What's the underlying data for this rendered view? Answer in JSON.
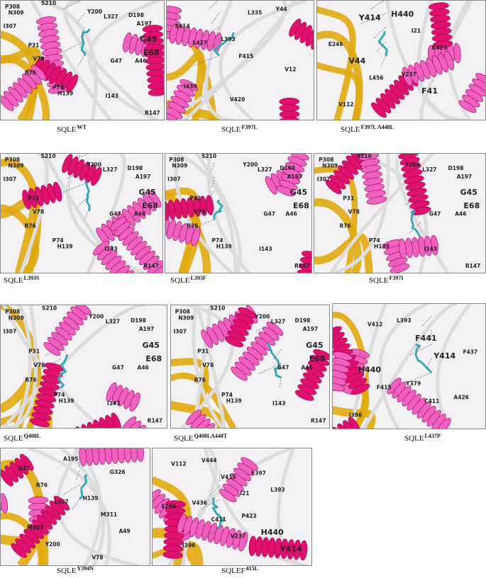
{
  "panels": [
    {
      "caption": {
        "base": "SQLE",
        "sup": "WT"
      },
      "labels": [
        "P308",
        "N309",
        "S210",
        "Y200",
        "L327",
        "D198",
        "A197",
        "I307",
        "P31",
        "G45",
        "E68",
        "A46",
        "G47",
        "V78",
        "R76",
        "P74",
        "H139",
        "I143",
        "R147"
      ]
    },
    {
      "caption": {
        "base": "SQLE",
        "sup": "F397L"
      },
      "labels": [
        "L427",
        "L335",
        "I439",
        "F415",
        "S414",
        "V420",
        "V12",
        "L393",
        "Y44"
      ]
    },
    {
      "caption": {
        "base": "SQLE",
        "sup": "F397L A448L"
      },
      "labels": [
        "L456",
        "K423",
        "Y414",
        "F41",
        "V44",
        "I21",
        "V112",
        "V237",
        "E246",
        "H440"
      ]
    },
    {
      "caption": {
        "base": "SQLE",
        "sup": "L393S"
      },
      "labels": [
        "P308",
        "N309",
        "S210",
        "Y200",
        "L327",
        "D198",
        "A197",
        "I307",
        "P31",
        "G45",
        "E68",
        "A46",
        "G47",
        "V78",
        "R76",
        "P74",
        "H139",
        "I143",
        "R147"
      ]
    },
    {
      "caption": {
        "base": "SQLE",
        "sup": "L393F"
      },
      "labels": [
        "P308",
        "N309",
        "S210",
        "Y200",
        "L327",
        "D198",
        "A197",
        "I307",
        "P31",
        "G45",
        "E68",
        "A46",
        "G47",
        "V78",
        "R76",
        "P74",
        "H139",
        "I143",
        "R147"
      ]
    },
    {
      "caption": {
        "base": "SQLE",
        "sup": "F397I"
      },
      "labels": [
        "P308",
        "N309",
        "S210",
        "Y200",
        "L327",
        "D198",
        "A197",
        "I307",
        "P31",
        "G45",
        "E68",
        "A46",
        "G47",
        "V78",
        "R76",
        "P74",
        "H139",
        "I143",
        "R147"
      ]
    },
    {
      "caption": {
        "base": "SQLE",
        "sup": "Q408L"
      },
      "labels": [
        "P308",
        "N309",
        "S210",
        "Y200",
        "L327",
        "D198",
        "A197",
        "I307",
        "P31",
        "G45",
        "E68",
        "A46",
        "G47",
        "V78",
        "R76",
        "P74",
        "H139",
        "I143",
        "R147"
      ]
    },
    {
      "caption": {
        "base": "SQLE",
        "sup": "Q408LA448T"
      },
      "labels": [
        "P308",
        "N309",
        "S210",
        "Y200",
        "L327",
        "D198",
        "A197",
        "I307",
        "P31",
        "G45",
        "E68",
        "A46",
        "G47",
        "V78",
        "R76",
        "P74",
        "H139",
        "I143",
        "R147"
      ]
    },
    {
      "caption": {
        "base": "SQLE",
        "sup": "L437P"
      },
      "labels": [
        "F415",
        "Y414",
        "V412",
        "C411",
        "H440",
        "F441",
        "I396",
        "Y379",
        "F437",
        "L393",
        "A426"
      ]
    },
    {
      "caption": {
        "base": "SQLE",
        "sup": "Y394N"
      },
      "labels": [
        "A195",
        "A49",
        "L327",
        "G326",
        "Y200",
        "M311",
        "R76",
        "V78",
        "M307",
        "H139",
        "G47"
      ]
    },
    {
      "caption": {
        "base": "SQLEF",
        "sup": "415L"
      },
      "labels": [
        "I21",
        "V112",
        "V237",
        "E246",
        "V415",
        "Y414",
        "C411",
        "L393",
        "V444",
        "H440",
        "V436",
        "F397",
        "I396",
        "P423"
      ]
    }
  ]
}
